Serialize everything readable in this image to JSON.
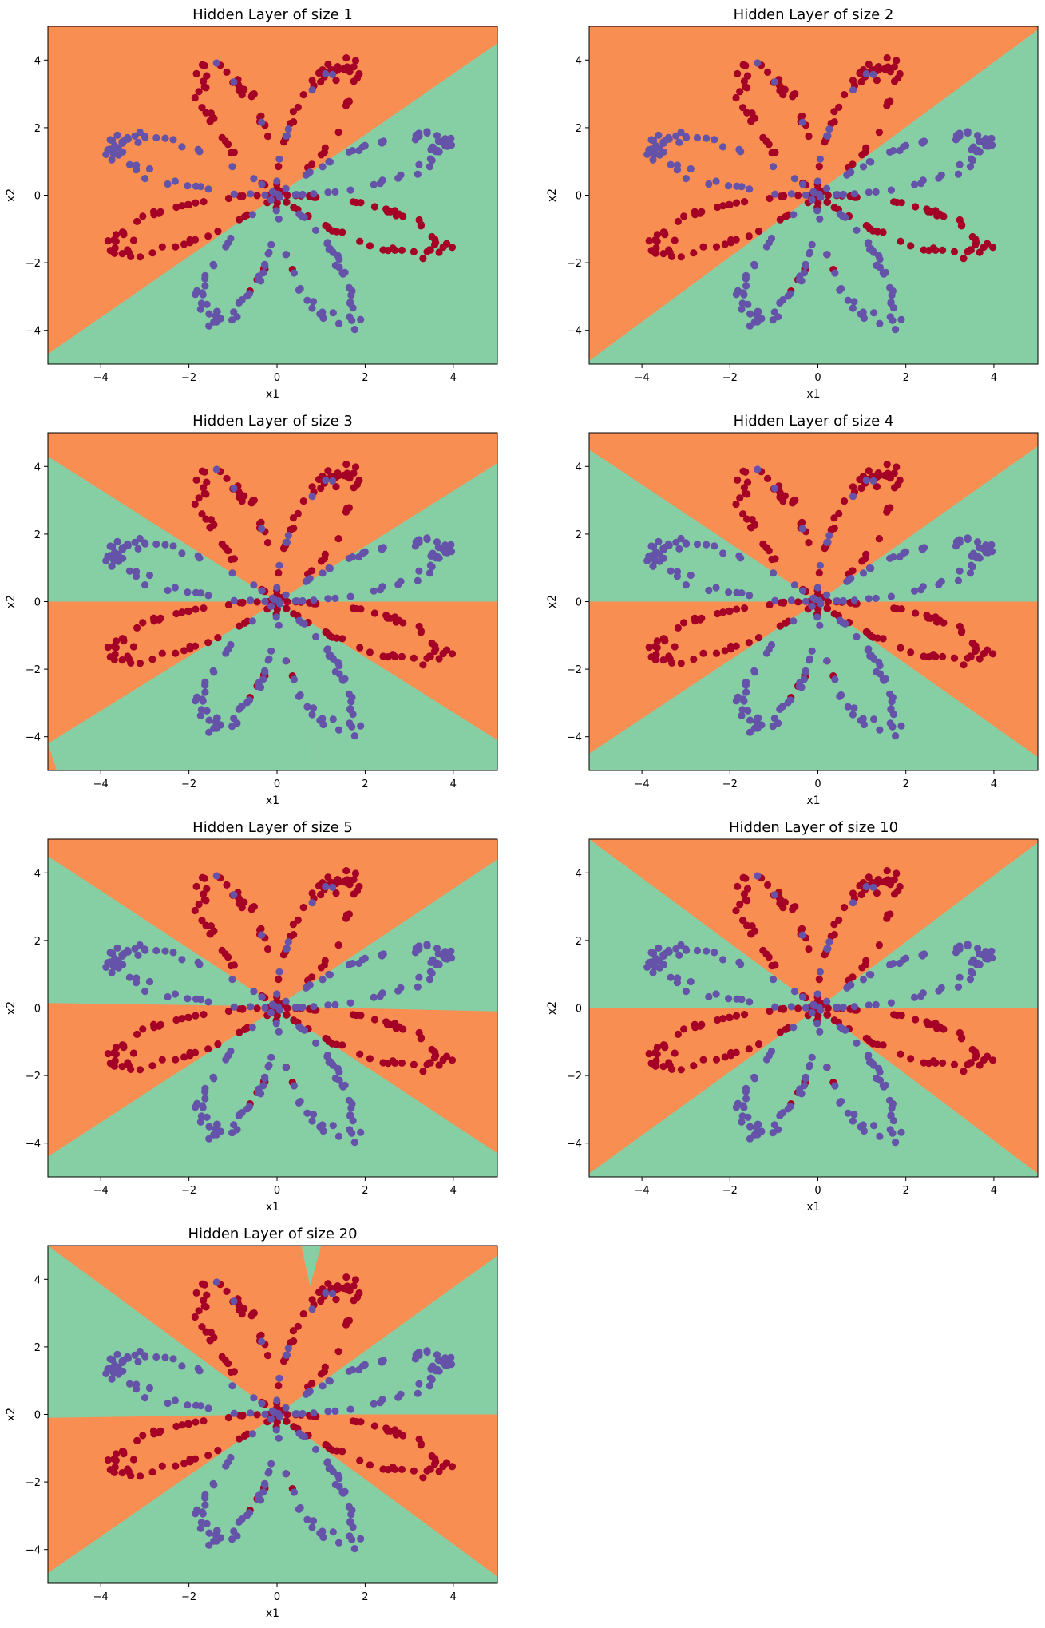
{
  "figure": {
    "colors": {
      "class0_region": "#f98e52",
      "class1_region": "#86cfa5",
      "class0_point": "#a50026",
      "class1_point": "#6453a8"
    }
  },
  "chart_data": [
    {
      "type": "scatter",
      "title": "Hidden Layer of size 1",
      "xlabel": "x1",
      "ylabel": "x2",
      "xlim": [
        -5.2,
        5.0
      ],
      "ylim": [
        -5.0,
        5.0
      ],
      "xticks": [
        -4,
        -2,
        0,
        2,
        4
      ],
      "yticks": [
        -4,
        -2,
        0,
        2,
        4
      ],
      "decision_boundary": "single line from (-5.2, -4.7) to (5.0, 4.5); orange above, green below",
      "grid": false,
      "legend": "none",
      "series": []
    },
    {
      "type": "scatter",
      "title": "Hidden Layer of size 2",
      "xlabel": "x1",
      "ylabel": "x2",
      "xlim": [
        -5.2,
        5.0
      ],
      "ylim": [
        -5.0,
        5.0
      ],
      "xticks": [
        -4,
        -2,
        0,
        2,
        4
      ],
      "yticks": [
        -4,
        -2,
        0,
        2,
        4
      ],
      "decision_boundary": "single line from (-5.2, -4.9) to (5.0, 4.9); orange above, green below",
      "grid": false,
      "legend": "none",
      "series": []
    },
    {
      "type": "scatter",
      "title": "Hidden Layer of size 3",
      "xlabel": "x1",
      "ylabel": "x2",
      "xlim": [
        -5.2,
        5.0
      ],
      "ylim": [
        -5.0,
        5.0
      ],
      "xticks": [
        -4,
        -2,
        0,
        2,
        4
      ],
      "yticks": [
        -4,
        -2,
        0,
        2,
        4
      ],
      "decision_boundary": "three lines through origin: y=0.8x, y=-0.8x, y=0; alternating orange/green sectors",
      "grid": false,
      "legend": "none",
      "series": []
    },
    {
      "type": "scatter",
      "title": "Hidden Layer of size 4",
      "xlabel": "x1",
      "ylabel": "x2",
      "xlim": [
        -5.2,
        5.0
      ],
      "ylim": [
        -5.0,
        5.0
      ],
      "xticks": [
        -4,
        -2,
        0,
        2,
        4
      ],
      "yticks": [
        -4,
        -2,
        0,
        2,
        4
      ],
      "decision_boundary": "three lines through origin: y=0.9x, y=-0.87x, y=0; alternating orange/green sectors",
      "grid": false,
      "legend": "none",
      "series": []
    },
    {
      "type": "scatter",
      "title": "Hidden Layer of size 5",
      "xlabel": "x1",
      "ylabel": "x2",
      "xlim": [
        -5.2,
        5.0
      ],
      "ylim": [
        -5.0,
        5.0
      ],
      "xticks": [
        -4,
        -2,
        0,
        2,
        4
      ],
      "yticks": [
        -4,
        -2,
        0,
        2,
        4
      ],
      "decision_boundary": "three lines near origin: y=0.87x, y=-0.87x, slightly tilted horizontal; alternating orange/green sectors",
      "grid": false,
      "legend": "none",
      "series": []
    },
    {
      "type": "scatter",
      "title": "Hidden Layer of size 10",
      "xlabel": "x1",
      "ylabel": "x2",
      "xlim": [
        -5.2,
        5.0
      ],
      "ylim": [
        -5.0,
        5.0
      ],
      "xticks": [
        -4,
        -2,
        0,
        2,
        4
      ],
      "yticks": [
        -4,
        -2,
        0,
        2,
        4
      ],
      "decision_boundary": "three lines through origin: y=0.97x, y=-0.97x, y=0; alternating orange/green sectors",
      "grid": false,
      "legend": "none",
      "series": []
    },
    {
      "type": "scatter",
      "title": "Hidden Layer of size 20",
      "xlabel": "x1",
      "ylabel": "x2",
      "xlim": [
        -5.2,
        5.0
      ],
      "ylim": [
        -5.0,
        5.0
      ],
      "xticks": [
        -4,
        -2,
        0,
        2,
        4
      ],
      "yticks": [
        -4,
        -2,
        0,
        2,
        4
      ],
      "decision_boundary": "three lines through origin: y=0.95x, y=-0.93x, y=0; plus small green spike near (0.7, 3.9)",
      "grid": false,
      "legend": "none",
      "series": []
    }
  ]
}
